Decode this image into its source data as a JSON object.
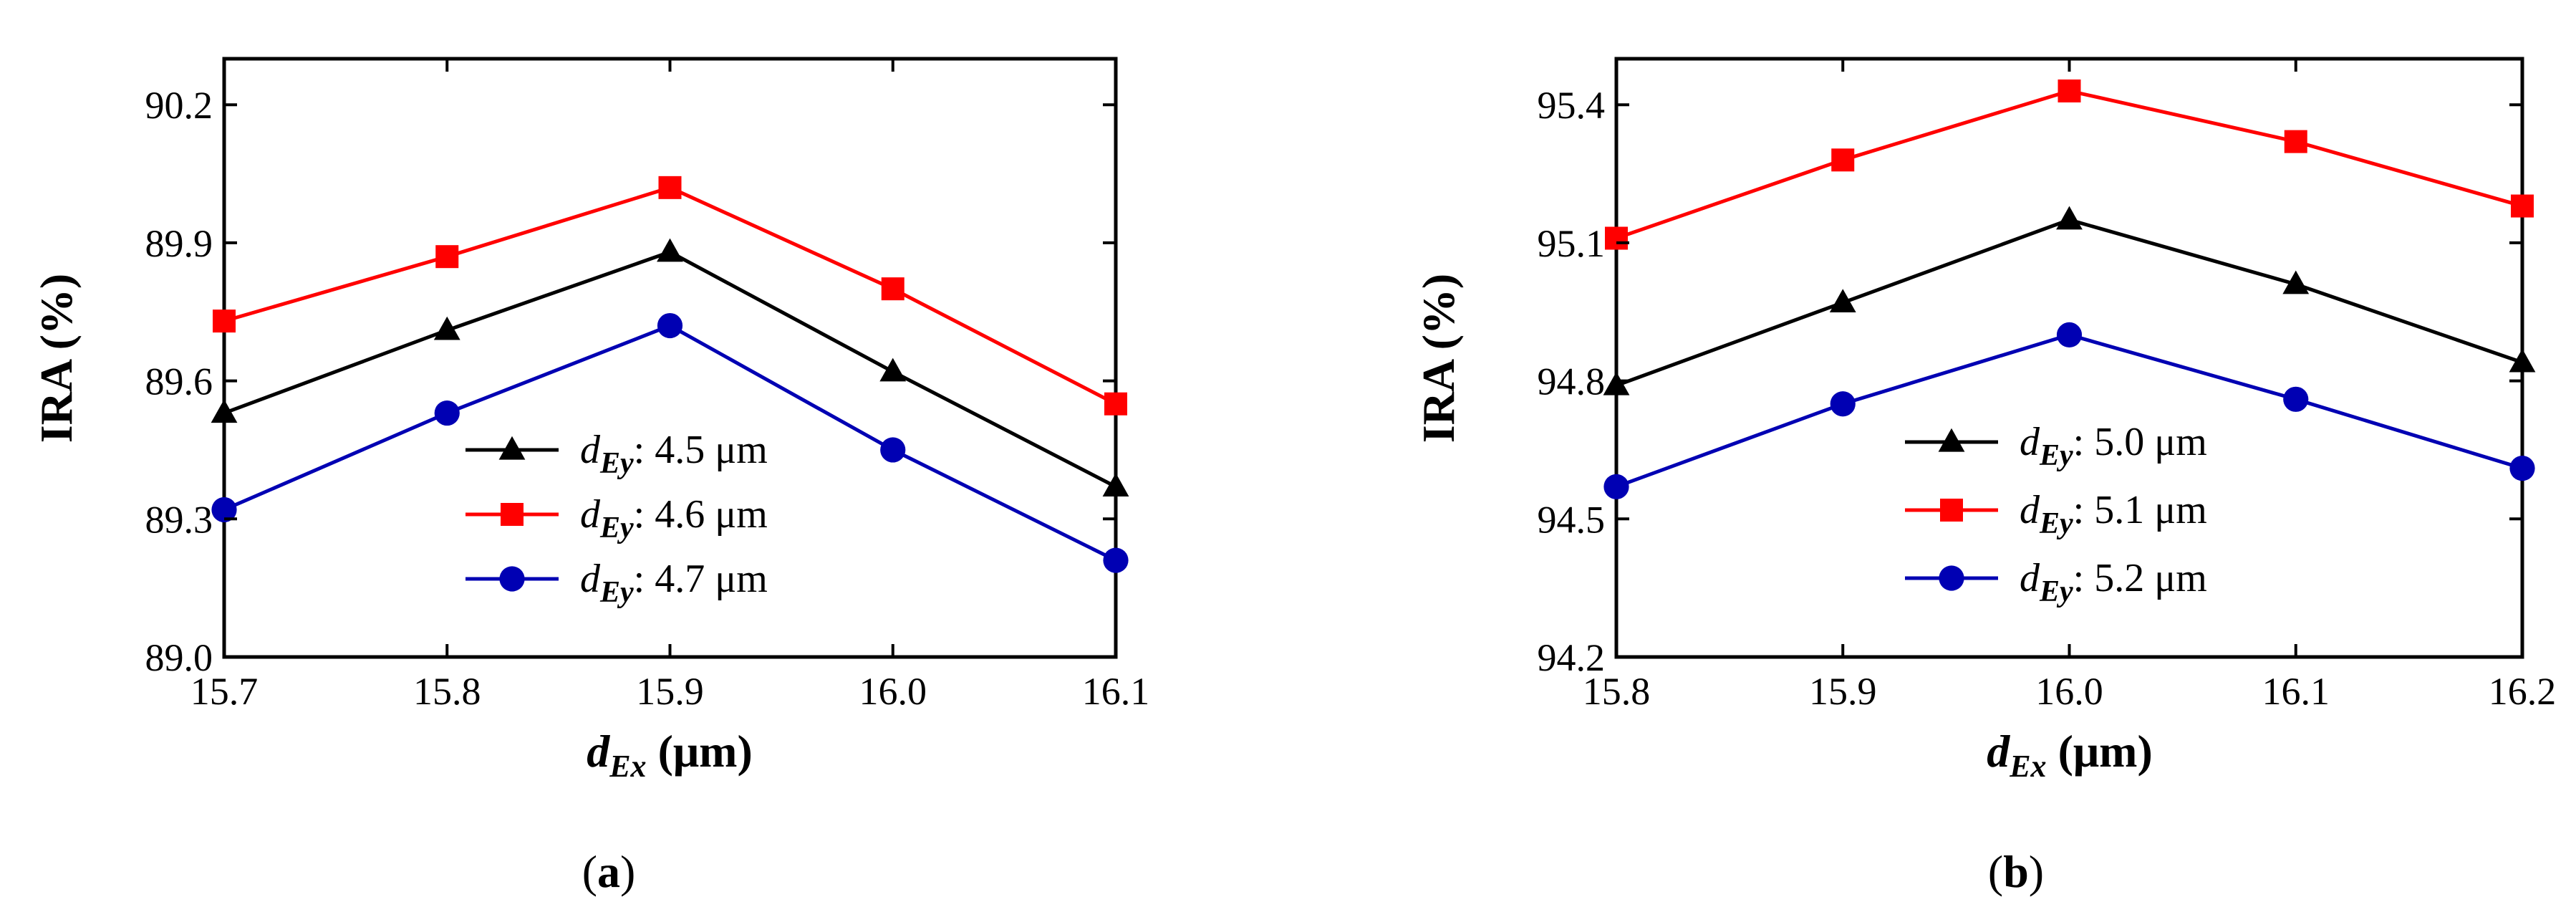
{
  "chart_data": [
    {
      "type": "line",
      "panel_label_prefix": "(",
      "panel_label": "a",
      "panel_label_suffix": ")",
      "x": [
        15.7,
        15.8,
        15.9,
        16.0,
        16.1
      ],
      "xlim": [
        15.7,
        16.1
      ],
      "ylim": [
        89.0,
        90.3
      ],
      "xticks": [
        "15.7",
        "15.8",
        "15.9",
        "16.0",
        "16.1"
      ],
      "yticks": [
        "89.0",
        "89.3",
        "89.6",
        "89.9",
        "90.2"
      ],
      "ytick_values": [
        89.0,
        89.3,
        89.6,
        89.9,
        90.2
      ],
      "ylabel": "IRA (%)",
      "xlabel_var": "d",
      "xlabel_sub": "Ex",
      "xlabel_unit": " (μm)",
      "legend_position": "lower-center",
      "series": [
        {
          "name_var": "d",
          "name_sub": "Ey",
          "name_rest": ": 4.5 μm",
          "marker": "triangle",
          "color": "#000000",
          "values": [
            89.53,
            89.71,
            89.88,
            89.62,
            89.37
          ]
        },
        {
          "name_var": "d",
          "name_sub": "Ey",
          "name_rest": ": 4.6 μm",
          "marker": "square",
          "color": "#ff0000",
          "values": [
            89.73,
            89.87,
            90.02,
            89.8,
            89.55
          ]
        },
        {
          "name_var": "d",
          "name_sub": "Ey",
          "name_rest": ": 4.7 μm",
          "marker": "circle",
          "color": "#0000b3",
          "values": [
            89.32,
            89.53,
            89.72,
            89.45,
            89.21
          ]
        }
      ]
    },
    {
      "type": "line",
      "panel_label_prefix": "(",
      "panel_label": "b",
      "panel_label_suffix": ")",
      "x": [
        15.8,
        15.9,
        16.0,
        16.1,
        16.2
      ],
      "xlim": [
        15.8,
        16.2
      ],
      "ylim": [
        94.2,
        95.5
      ],
      "xticks": [
        "15.8",
        "15.9",
        "16.0",
        "16.1",
        "16.2"
      ],
      "yticks": [
        "94.2",
        "94.5",
        "94.8",
        "95.1",
        "95.4"
      ],
      "ytick_values": [
        94.2,
        94.5,
        94.8,
        95.1,
        95.4
      ],
      "ylabel": "IRA (%)",
      "xlabel_var": "d",
      "xlabel_sub": "Ex",
      "xlabel_unit": " (μm)",
      "legend_position": "lower-center",
      "series": [
        {
          "name_var": "d",
          "name_sub": "Ey",
          "name_rest": ": 5.0 μm",
          "marker": "triangle",
          "color": "#000000",
          "values": [
            94.79,
            94.97,
            95.15,
            95.01,
            94.84
          ]
        },
        {
          "name_var": "d",
          "name_sub": "Ey",
          "name_rest": ": 5.1 μm",
          "marker": "square",
          "color": "#ff0000",
          "values": [
            95.11,
            95.28,
            95.43,
            95.32,
            95.18
          ]
        },
        {
          "name_var": "d",
          "name_sub": "Ey",
          "name_rest": ": 5.2 μm",
          "marker": "circle",
          "color": "#0000b3",
          "values": [
            94.57,
            94.75,
            94.9,
            94.76,
            94.61
          ]
        }
      ]
    }
  ]
}
